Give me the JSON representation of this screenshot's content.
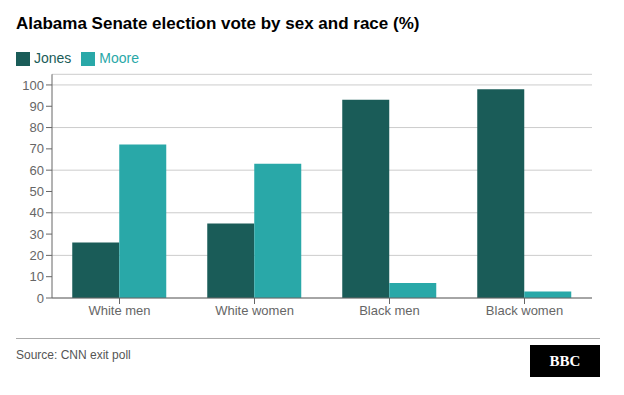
{
  "chart_data": {
    "type": "bar",
    "title": "Alabama Senate election vote by sex and race (%)",
    "categories": [
      "White men",
      "White women",
      "Black men",
      "Black women"
    ],
    "series": [
      {
        "name": "Jones",
        "color": "#1a5c58",
        "values": [
          26,
          35,
          93,
          98
        ]
      },
      {
        "name": "Moore",
        "color": "#29a8a8",
        "values": [
          72,
          63,
          7,
          3
        ]
      }
    ],
    "ylim": [
      0,
      105
    ],
    "yticks": [
      0,
      10,
      20,
      30,
      40,
      50,
      60,
      70,
      80,
      90,
      100
    ],
    "grid": true,
    "legend": "upper left",
    "annotations": [
      "Source: CNN exit poll",
      "BBC"
    ]
  }
}
